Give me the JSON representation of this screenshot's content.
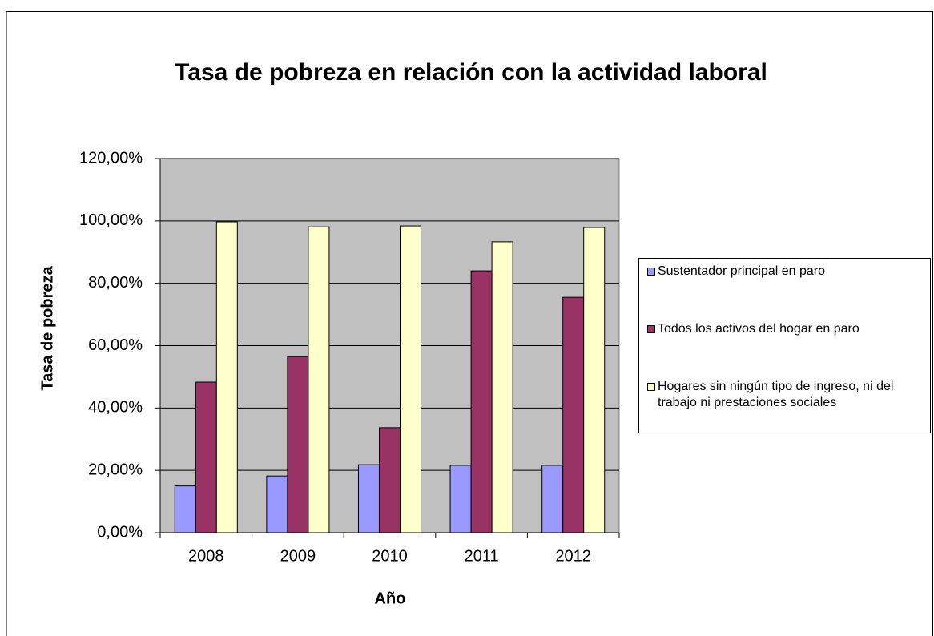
{
  "chart_data": {
    "type": "bar",
    "title": "Tasa de pobreza en relación con la actividad laboral",
    "x_label": "Año",
    "y_label": "Tasa de pobreza",
    "categories": [
      "2008",
      "2009",
      "2010",
      "2011",
      "2012"
    ],
    "series": [
      {
        "name": "Sustentador principal en paro",
        "color": "#9999ff",
        "values": [
          15,
          18.2,
          21.8,
          21.6,
          21.6
        ]
      },
      {
        "name": "Todos los activos del hogar en paro",
        "color": "#993366",
        "values": [
          48.3,
          56.5,
          33.7,
          84,
          75.5
        ]
      },
      {
        "name": "Hogares sin ningún tipo de ingreso, ni del trabajo ni prestaciones sociales",
        "color": "#ffffcc",
        "values": [
          99.7,
          98.1,
          98.4,
          93.3,
          97.9
        ]
      }
    ],
    "ylim": [
      0,
      120
    ],
    "yticks": [
      {
        "value": 0,
        "label": "0,00%"
      },
      {
        "value": 20,
        "label": "20,00%"
      },
      {
        "value": 40,
        "label": "40,00%"
      },
      {
        "value": 60,
        "label": "60,00%"
      },
      {
        "value": 80,
        "label": "80,00%"
      },
      {
        "value": 100,
        "label": "100,00%"
      },
      {
        "value": 120,
        "label": "120,00%"
      }
    ],
    "grid": true,
    "plot_background": "#c0c0c0",
    "legend": "right"
  }
}
